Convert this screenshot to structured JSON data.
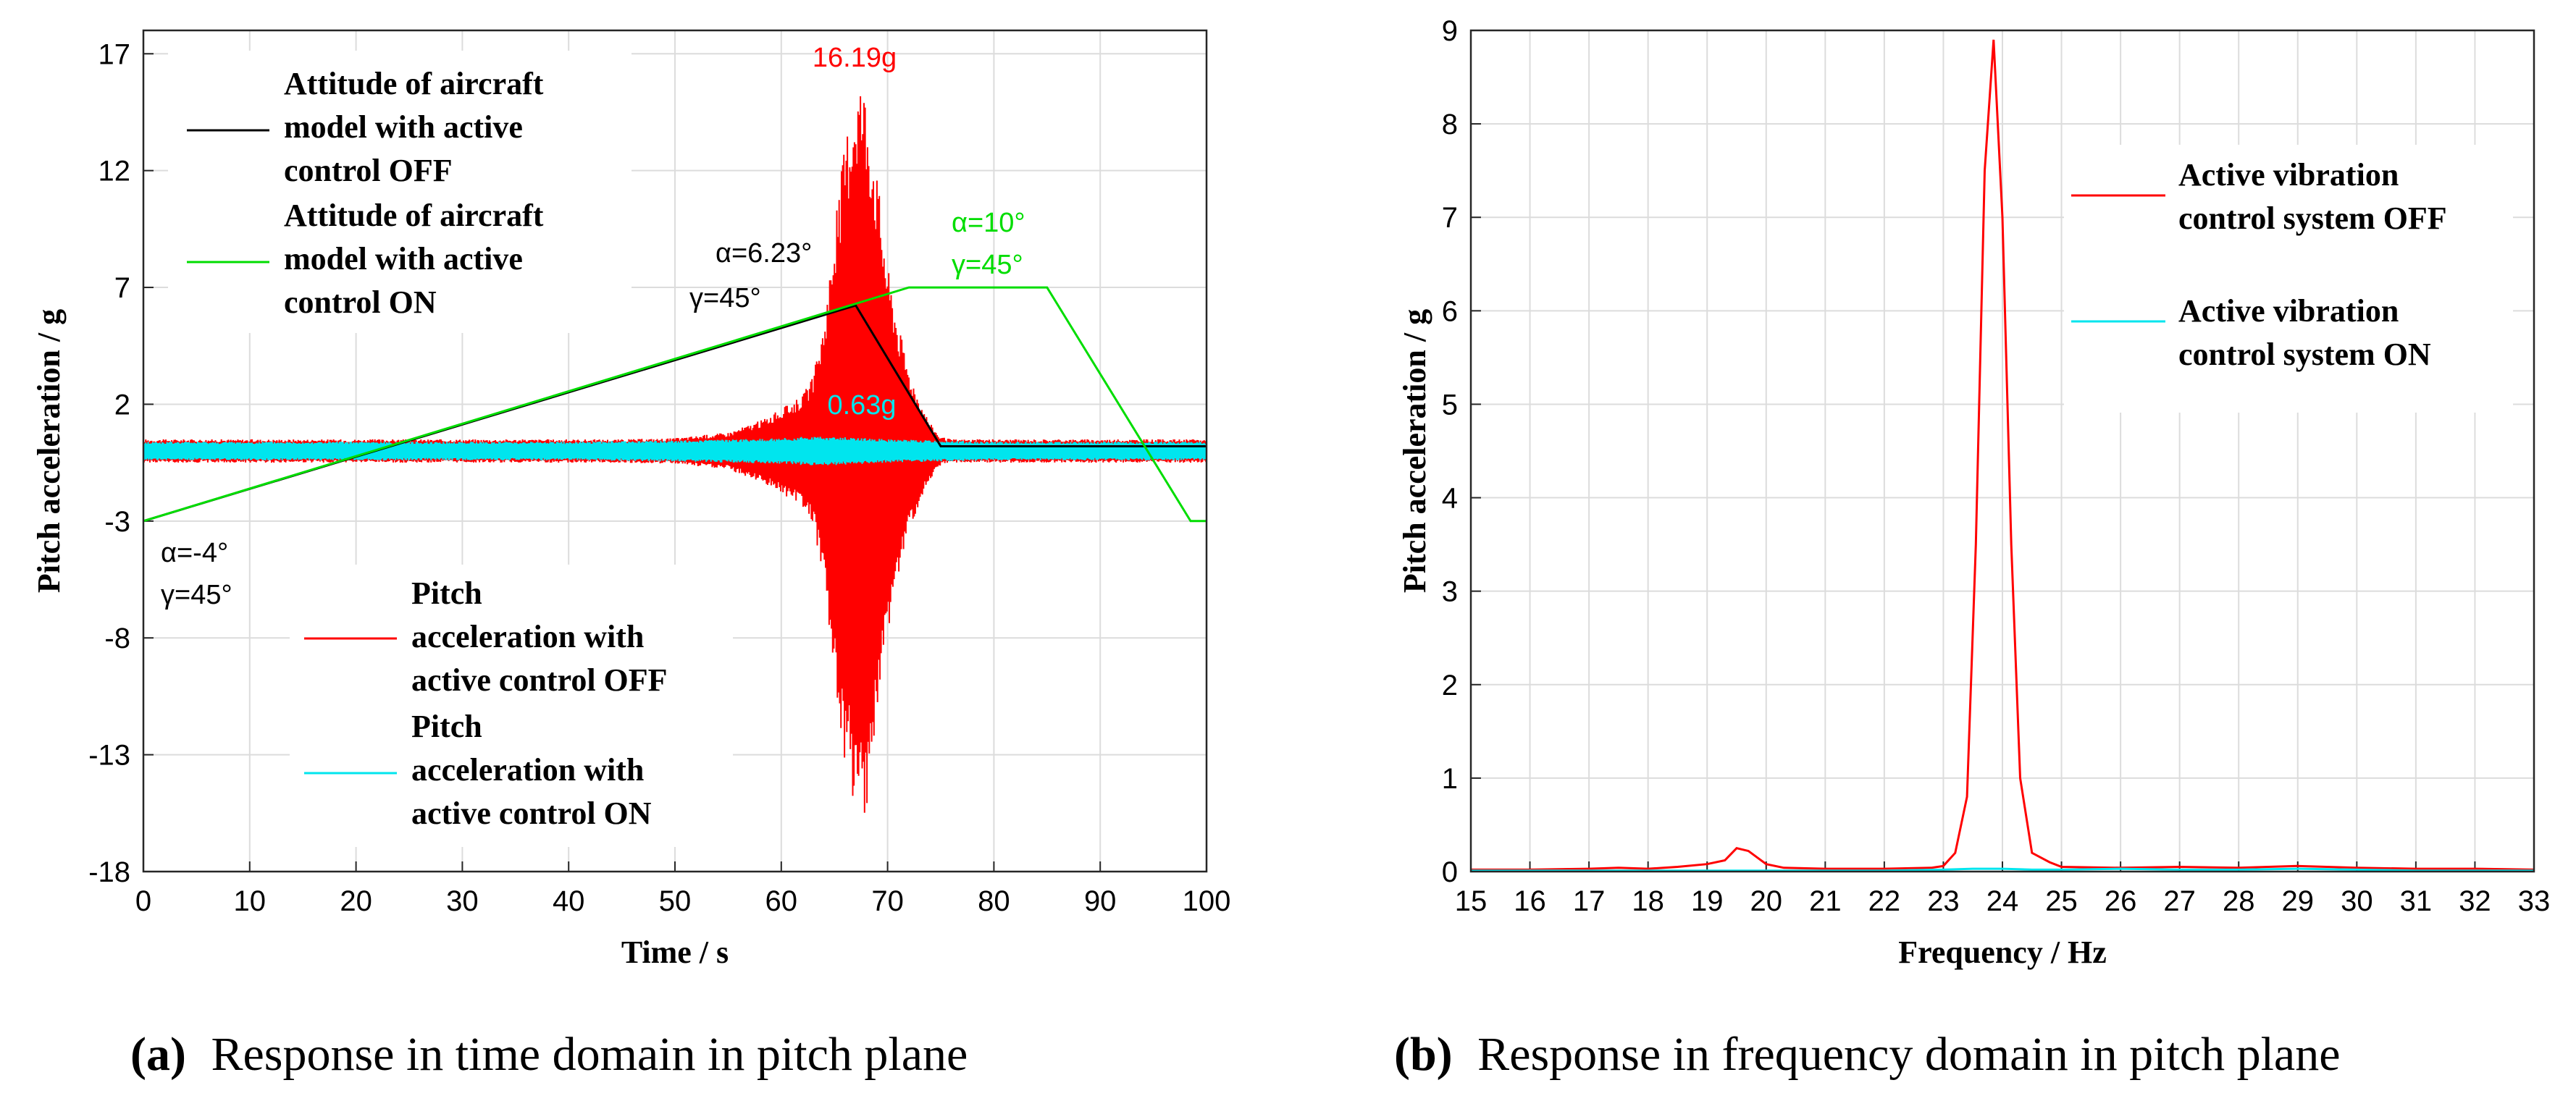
{
  "chart_data": [
    {
      "type": "line",
      "panel": "a",
      "xlabel": "Time / s",
      "ylabel": "Pitch acceleration / g",
      "xlim": [
        0,
        100
      ],
      "ylim": [
        -18,
        18
      ],
      "xticks": [
        "0",
        "10",
        "20",
        "30",
        "40",
        "50",
        "60",
        "70",
        "80",
        "90",
        "100"
      ],
      "yticks": [
        "17",
        "12",
        "7",
        "2",
        "-3",
        "-8",
        "-13",
        "-18"
      ],
      "grid": true,
      "caption_label": "(a)",
      "caption_text": "Response in time domain in pitch plane",
      "legend_top": [
        {
          "name": "Attitude of aircraft model with active control OFF",
          "lines": [
            "Attitude of aircraft",
            "model with active",
            "control OFF"
          ],
          "color": "#000000"
        },
        {
          "name": "Attitude of aircraft model with active control ON",
          "lines": [
            "Attitude of aircraft",
            "model with active",
            "control ON"
          ],
          "color": "#00dd00"
        }
      ],
      "legend_bottom": [
        {
          "name": "Pitch acceleration with active control OFF",
          "lines": [
            "Pitch",
            "acceleration with",
            "active control OFF"
          ],
          "color": "#ff0000"
        },
        {
          "name": "Pitch acceleration with active control ON",
          "lines": [
            "Pitch",
            "acceleration with",
            "active control ON"
          ],
          "color": "#00e5ee"
        }
      ],
      "series": [
        {
          "name": "Attitude of aircraft model with active control ON",
          "color": "#00dd00",
          "x": [
            0,
            72,
            85,
            98.5,
            100
          ],
          "y": [
            -3,
            7,
            7,
            -3,
            -3
          ]
        },
        {
          "name": "Attitude of aircraft model with active control OFF",
          "color": "#000000",
          "x": [
            0,
            67,
            75,
            100
          ],
          "y": [
            -3,
            6.23,
            0.2,
            0.2
          ]
        },
        {
          "name": "Pitch acceleration with active control OFF",
          "color": "#ff0000",
          "envelope": {
            "x": [
              0,
              10,
              20,
              30,
              40,
              45,
              50,
              55,
              58,
              60,
              62,
              63,
              64,
              65,
              66,
              67,
              67.5,
              68,
              69,
              70,
              71,
              72,
              73,
              74,
              75,
              76,
              80,
              90,
              100
            ],
            "amp": [
              0.5,
              0.5,
              0.5,
              0.5,
              0.5,
              0.5,
              0.55,
              0.8,
              1.3,
              1.8,
              2.4,
              3.2,
              5.5,
              9.5,
              13.5,
              16.0,
              16.19,
              15.5,
              12.0,
              8.0,
              5.5,
              3.5,
              2.2,
              1.2,
              0.6,
              0.5,
              0.5,
              0.5,
              0.5
            ]
          }
        },
        {
          "name": "Pitch acceleration with active control ON",
          "color": "#00e5ee",
          "envelope": {
            "x": [
              0,
              10,
              20,
              30,
              40,
              50,
              55,
              60,
              62,
              63,
              65,
              68,
              70,
              75,
              80,
              90,
              100
            ],
            "amp": [
              0.4,
              0.4,
              0.4,
              0.4,
              0.4,
              0.45,
              0.5,
              0.55,
              0.6,
              0.63,
              0.6,
              0.55,
              0.5,
              0.45,
              0.4,
              0.4,
              0.4
            ]
          }
        }
      ],
      "annotations": [
        {
          "text": "16.19g",
          "x": 67.5,
          "y": 16.19,
          "color": "#ff0000"
        },
        {
          "text": "0.63g",
          "x": 63,
          "y": 0.63,
          "color": "#00e5ee"
        },
        {
          "text": "α=6.23°",
          "color": "#000000"
        },
        {
          "text": "γ=45°",
          "color": "#000000"
        },
        {
          "text": "α=10°",
          "color": "#00dd00"
        },
        {
          "text": "γ=45°",
          "color": "#00dd00"
        },
        {
          "text": "α=-4°",
          "color": "#000000"
        },
        {
          "text": "γ=45°",
          "color": "#000000"
        }
      ]
    },
    {
      "type": "line",
      "panel": "b",
      "xlabel": "Frequency / Hz",
      "ylabel": "Pitch acceleration / g",
      "xlim": [
        15,
        33
      ],
      "ylim": [
        0,
        9
      ],
      "xticks": [
        "15",
        "16",
        "17",
        "18",
        "19",
        "20",
        "21",
        "22",
        "23",
        "24",
        "25",
        "26",
        "27",
        "28",
        "29",
        "30",
        "31",
        "32",
        "33"
      ],
      "yticks": [
        "0",
        "1",
        "2",
        "3",
        "4",
        "5",
        "6",
        "7",
        "8",
        "9"
      ],
      "grid": true,
      "caption_label": "(b)",
      "caption_text": "Response in frequency domain in pitch plane",
      "legend": [
        {
          "name": "Active vibration control system OFF",
          "lines": [
            "Active vibration",
            "control system OFF"
          ],
          "color": "#ff0000"
        },
        {
          "name": "Active vibration control system ON",
          "lines": [
            "Active vibration",
            "control system ON"
          ],
          "color": "#00e5ee"
        }
      ],
      "series": [
        {
          "name": "Active vibration control system OFF",
          "color": "#ff0000",
          "x": [
            15,
            16,
            17,
            17.5,
            18,
            18.5,
            19,
            19.3,
            19.5,
            19.7,
            20,
            20.3,
            21,
            22,
            22.8,
            23,
            23.2,
            23.4,
            23.55,
            23.7,
            23.85,
            24.0,
            24.15,
            24.3,
            24.5,
            24.8,
            25,
            26,
            27,
            28,
            29,
            30,
            31,
            32,
            33
          ],
          "y": [
            0.02,
            0.02,
            0.03,
            0.04,
            0.03,
            0.05,
            0.08,
            0.12,
            0.25,
            0.22,
            0.08,
            0.04,
            0.03,
            0.03,
            0.04,
            0.06,
            0.2,
            0.8,
            3.5,
            7.5,
            8.9,
            7.0,
            3.5,
            1.0,
            0.2,
            0.1,
            0.05,
            0.04,
            0.05,
            0.04,
            0.06,
            0.04,
            0.03,
            0.03,
            0.02
          ]
        },
        {
          "name": "Active vibration control system ON",
          "color": "#00e5ee",
          "x": [
            15,
            16,
            17,
            18,
            19,
            20,
            21,
            22,
            23,
            23.5,
            24,
            24.5,
            25,
            26,
            27,
            28,
            29,
            30,
            31,
            32,
            33
          ],
          "y": [
            0.01,
            0.01,
            0.01,
            0.01,
            0.01,
            0.01,
            0.01,
            0.01,
            0.02,
            0.03,
            0.03,
            0.02,
            0.02,
            0.03,
            0.02,
            0.02,
            0.03,
            0.02,
            0.01,
            0.01,
            0.01
          ]
        }
      ]
    }
  ]
}
